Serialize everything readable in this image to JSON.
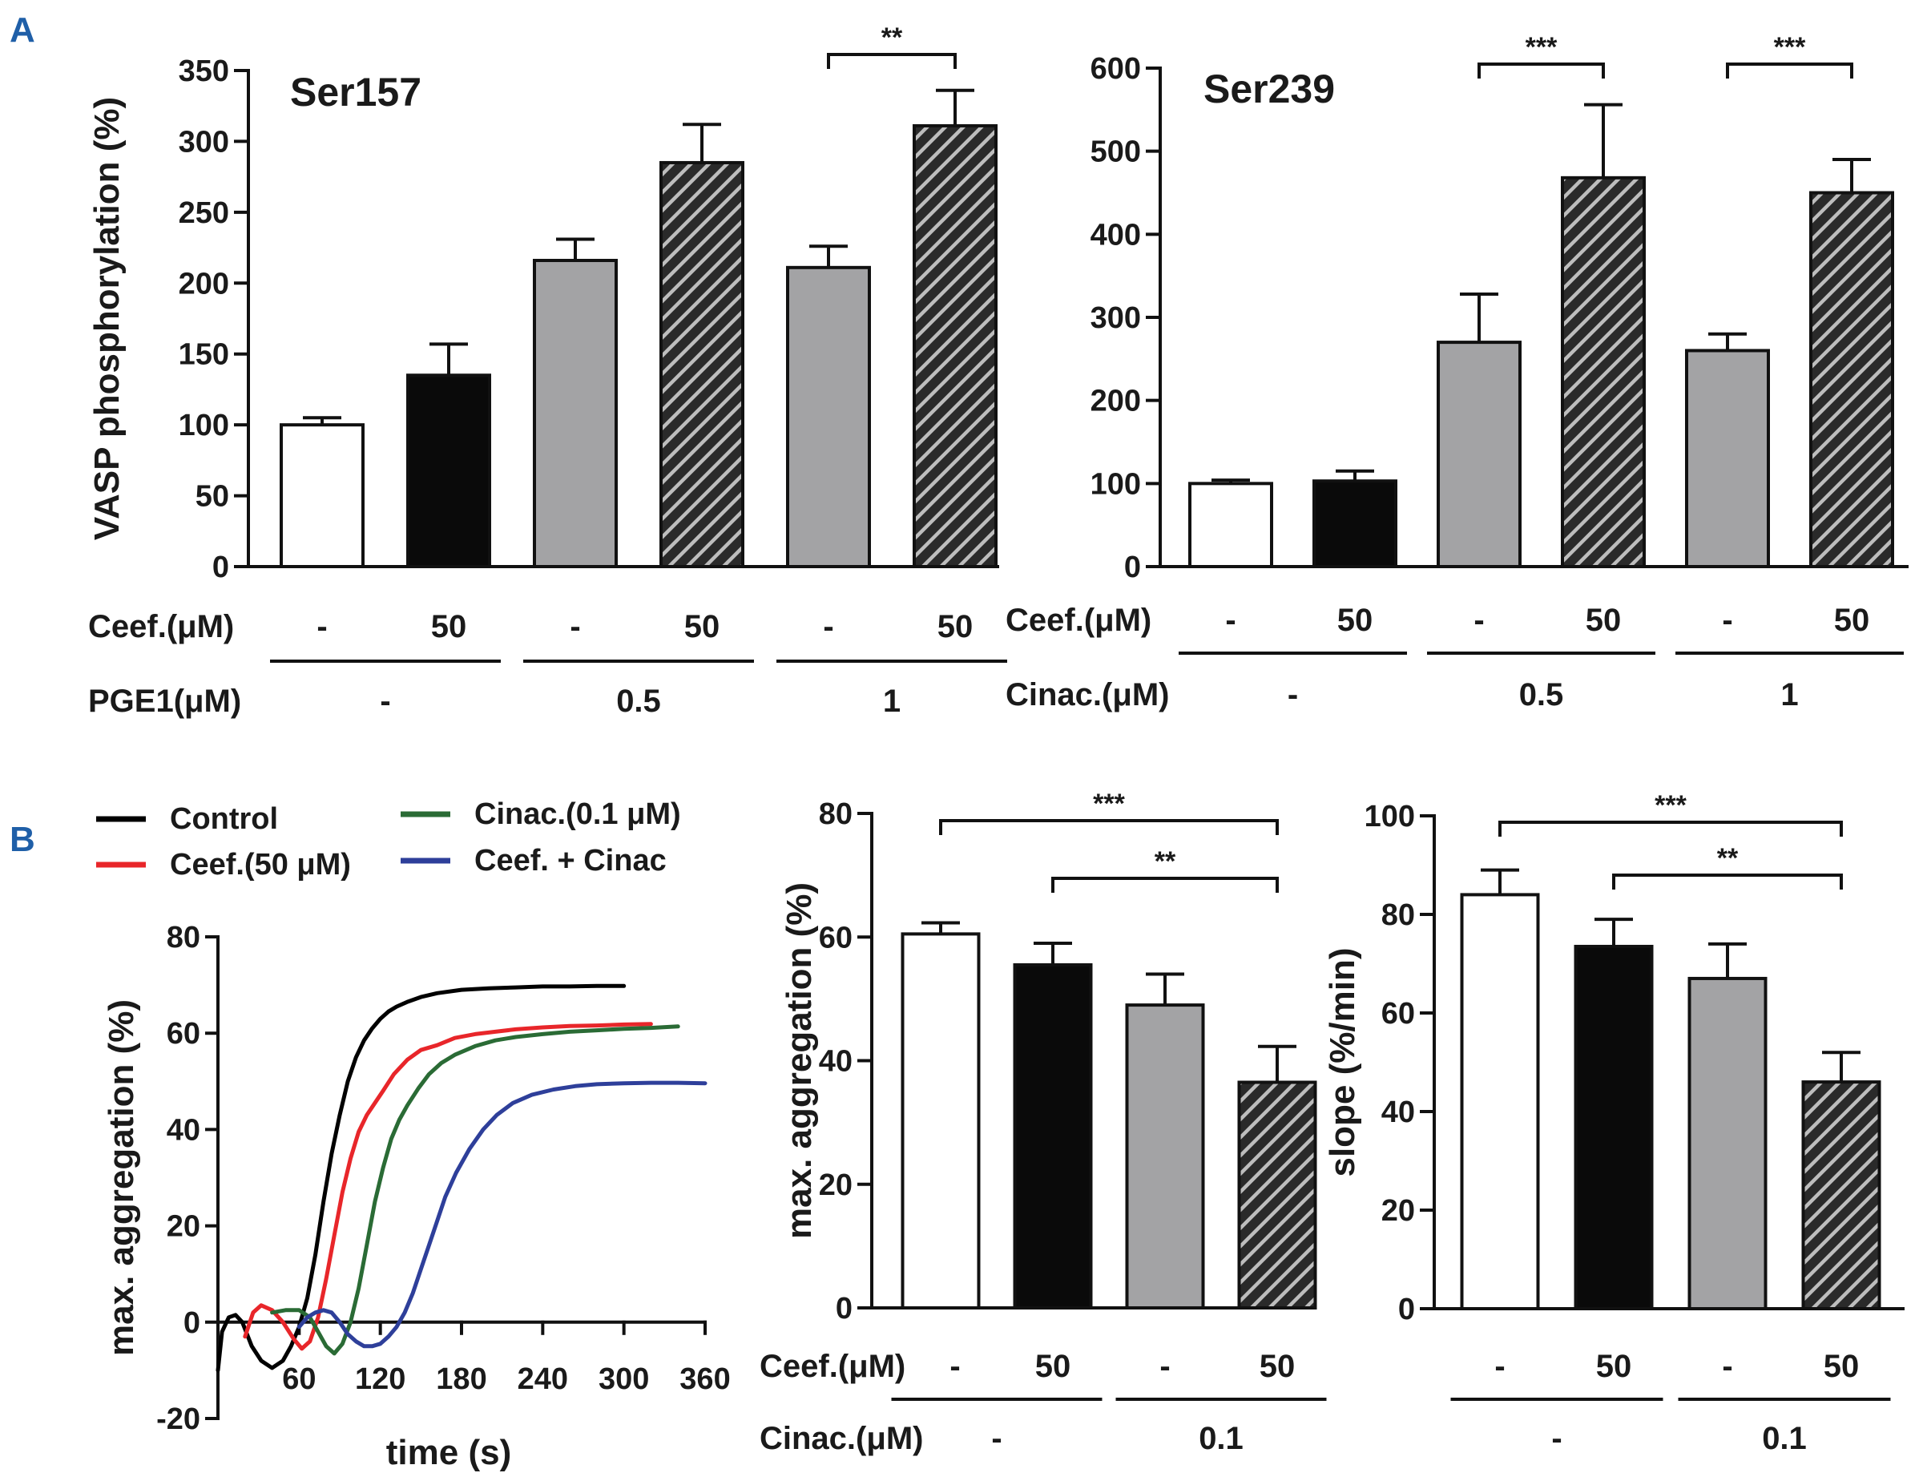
{
  "panels": {
    "a": "A",
    "b": "B"
  },
  "colors": {
    "white_bar": "#ffffff",
    "black_bar": "#0a0a0a",
    "grey_bar": "#a3a3a5",
    "hatch_bg": "#2a2a2a",
    "hatch_line": "#bdbdbd",
    "control": "#000000",
    "ceef": "#e8262a",
    "cinac": "#2a6b35",
    "combo": "#2e3f9a"
  },
  "chart_data": [
    {
      "id": "ser157",
      "type": "bar",
      "title": "Ser157",
      "ylabel": "VASP phosphorylation (%)",
      "ylim": [
        0,
        350
      ],
      "yticks": [
        0,
        50,
        100,
        150,
        200,
        250,
        300,
        350
      ],
      "styles": [
        "white",
        "black",
        "grey",
        "hatch",
        "grey",
        "hatch"
      ],
      "values": [
        100,
        135,
        216,
        285,
        211,
        311
      ],
      "errors": [
        5,
        22,
        15,
        27,
        15,
        25
      ],
      "significance": [
        {
          "from": 4,
          "to": 5,
          "label": "**"
        }
      ],
      "conditions": {
        "row1_label": "Ceef.(μM)",
        "row1_values": [
          "-",
          "50",
          "-",
          "50",
          "-",
          "50"
        ],
        "row2_label": "PGE1(μM)",
        "row2_values": [
          "-",
          "0.5",
          "1"
        ]
      }
    },
    {
      "id": "ser239",
      "type": "bar",
      "title": "Ser239",
      "ylabel": "",
      "ylim": [
        0,
        600
      ],
      "yticks": [
        0,
        100,
        200,
        300,
        400,
        500,
        600
      ],
      "styles": [
        "white",
        "black",
        "grey",
        "hatch",
        "grey",
        "hatch"
      ],
      "values": [
        100,
        103,
        270,
        468,
        260,
        450
      ],
      "errors": [
        4,
        12,
        58,
        88,
        20,
        40
      ],
      "significance": [
        {
          "from": 2,
          "to": 3,
          "label": "***"
        },
        {
          "from": 4,
          "to": 5,
          "label": "***"
        }
      ],
      "conditions": {
        "row1_label": "Ceef.(μM)",
        "row1_values": [
          "-",
          "50",
          "-",
          "50",
          "-",
          "50"
        ],
        "row2_label": "Cinac.(μM)",
        "row2_values": [
          "-",
          "0.5",
          "1"
        ]
      }
    },
    {
      "id": "aggregation-trace",
      "type": "line",
      "xlabel": "time (s)",
      "ylabel": "max. aggregation (%)",
      "xlim": [
        0,
        360
      ],
      "ylim": [
        -20,
        80
      ],
      "xticks": [
        60,
        120,
        180,
        240,
        300,
        360
      ],
      "yticks": [
        -20,
        0,
        20,
        40,
        60,
        80
      ],
      "legend": [
        "Control",
        "Ceef.(50 μM)",
        "Cinac.(0.1 μM)",
        "Ceef. + Cinac"
      ],
      "series": [
        {
          "name": "Control",
          "color_key": "control",
          "x": [
            0,
            3,
            8,
            13,
            18,
            25,
            32,
            40,
            48,
            54,
            60,
            66,
            72,
            78,
            84,
            90,
            96,
            102,
            108,
            114,
            120,
            126,
            132,
            140,
            150,
            162,
            180,
            200,
            220,
            240,
            260,
            280,
            300
          ],
          "y": [
            -10,
            -2,
            1,
            1.5,
            0,
            -5,
            -8,
            -9.5,
            -8,
            -5,
            -1,
            5,
            14,
            25,
            35,
            43,
            50,
            55,
            58.5,
            61,
            63,
            64.5,
            65.5,
            66.5,
            67.5,
            68.3,
            69,
            69.3,
            69.5,
            69.7,
            69.7,
            69.8,
            69.8
          ]
        },
        {
          "name": "Ceef.(50 μM)",
          "color_key": "ceef",
          "x": [
            20,
            26,
            32,
            40,
            48,
            56,
            62,
            68,
            74,
            80,
            86,
            92,
            98,
            104,
            110,
            116,
            122,
            130,
            140,
            150,
            162,
            175,
            190,
            205,
            220,
            240,
            260,
            280,
            300,
            320
          ],
          "y": [
            -3,
            2,
            3.5,
            2.5,
            0,
            -3.5,
            -5.5,
            -4,
            1,
            9,
            18,
            27,
            34,
            39.5,
            43,
            45.5,
            48,
            51.5,
            54.5,
            56.5,
            57.5,
            59,
            59.8,
            60.3,
            60.8,
            61.2,
            61.5,
            61.6,
            61.8,
            61.9
          ]
        },
        {
          "name": "Cinac.(0.1 μM)",
          "color_key": "cinac",
          "x": [
            40,
            50,
            60,
            68,
            74,
            80,
            86,
            92,
            98,
            104,
            110,
            116,
            122,
            128,
            134,
            140,
            148,
            156,
            165,
            175,
            190,
            205,
            220,
            240,
            260,
            280,
            300,
            320,
            340
          ],
          "y": [
            2,
            2.5,
            2.5,
            1,
            -2,
            -5,
            -6.5,
            -4.5,
            0,
            7,
            16,
            25,
            32,
            38,
            42,
            45,
            48.5,
            51.5,
            53.8,
            55.5,
            57.3,
            58.5,
            59.2,
            59.8,
            60.3,
            60.6,
            60.9,
            61.1,
            61.4
          ]
        },
        {
          "name": "Ceef. + Cinac",
          "color_key": "combo",
          "x": [
            60,
            66,
            72,
            78,
            84,
            90,
            96,
            102,
            108,
            114,
            120,
            126,
            132,
            138,
            144,
            150,
            156,
            162,
            168,
            176,
            186,
            196,
            206,
            218,
            232,
            248,
            264,
            280,
            300,
            320,
            340,
            360
          ],
          "y": [
            -1,
            1,
            2,
            2.5,
            2,
            0,
            -2.5,
            -4,
            -5,
            -5,
            -4.5,
            -3,
            -1,
            2,
            6,
            11,
            16,
            21,
            26,
            31,
            36,
            40,
            43,
            45.5,
            47.2,
            48.3,
            49,
            49.4,
            49.6,
            49.7,
            49.7,
            49.6
          ]
        }
      ]
    },
    {
      "id": "max-aggregation",
      "type": "bar",
      "ylabel": "max. aggregation (%)",
      "ylim": [
        0,
        80
      ],
      "yticks": [
        0,
        20,
        40,
        60,
        80
      ],
      "styles": [
        "white",
        "black",
        "grey",
        "hatch"
      ],
      "values": [
        60.5,
        55.5,
        49,
        36.5
      ],
      "errors": [
        1.8,
        3.5,
        5,
        5.8
      ],
      "significance": [
        {
          "from": 0,
          "to": 3,
          "label": "***"
        },
        {
          "from": 1,
          "to": 3,
          "label": "**"
        }
      ],
      "conditions": {
        "row1_label": "Ceef.(μM)",
        "row1_values": [
          "-",
          "50",
          "-",
          "50"
        ],
        "row2_label": "Cinac.(μM)",
        "row2_values": [
          "-",
          "0.1"
        ]
      }
    },
    {
      "id": "slope",
      "type": "bar",
      "ylabel": "slope  (%/min)",
      "ylim": [
        0,
        100
      ],
      "yticks": [
        0,
        20,
        40,
        60,
        80,
        100
      ],
      "styles": [
        "white",
        "black",
        "grey",
        "hatch"
      ],
      "values": [
        84,
        73.5,
        67,
        46
      ],
      "errors": [
        5,
        5.5,
        7,
        6
      ],
      "significance": [
        {
          "from": 0,
          "to": 3,
          "label": "***"
        },
        {
          "from": 1,
          "to": 3,
          "label": "**"
        }
      ],
      "conditions": {
        "row1_label": "",
        "row1_values": [
          "-",
          "50",
          "-",
          "50"
        ],
        "row2_label": "",
        "row2_values": [
          "-",
          "0.1"
        ]
      }
    }
  ]
}
